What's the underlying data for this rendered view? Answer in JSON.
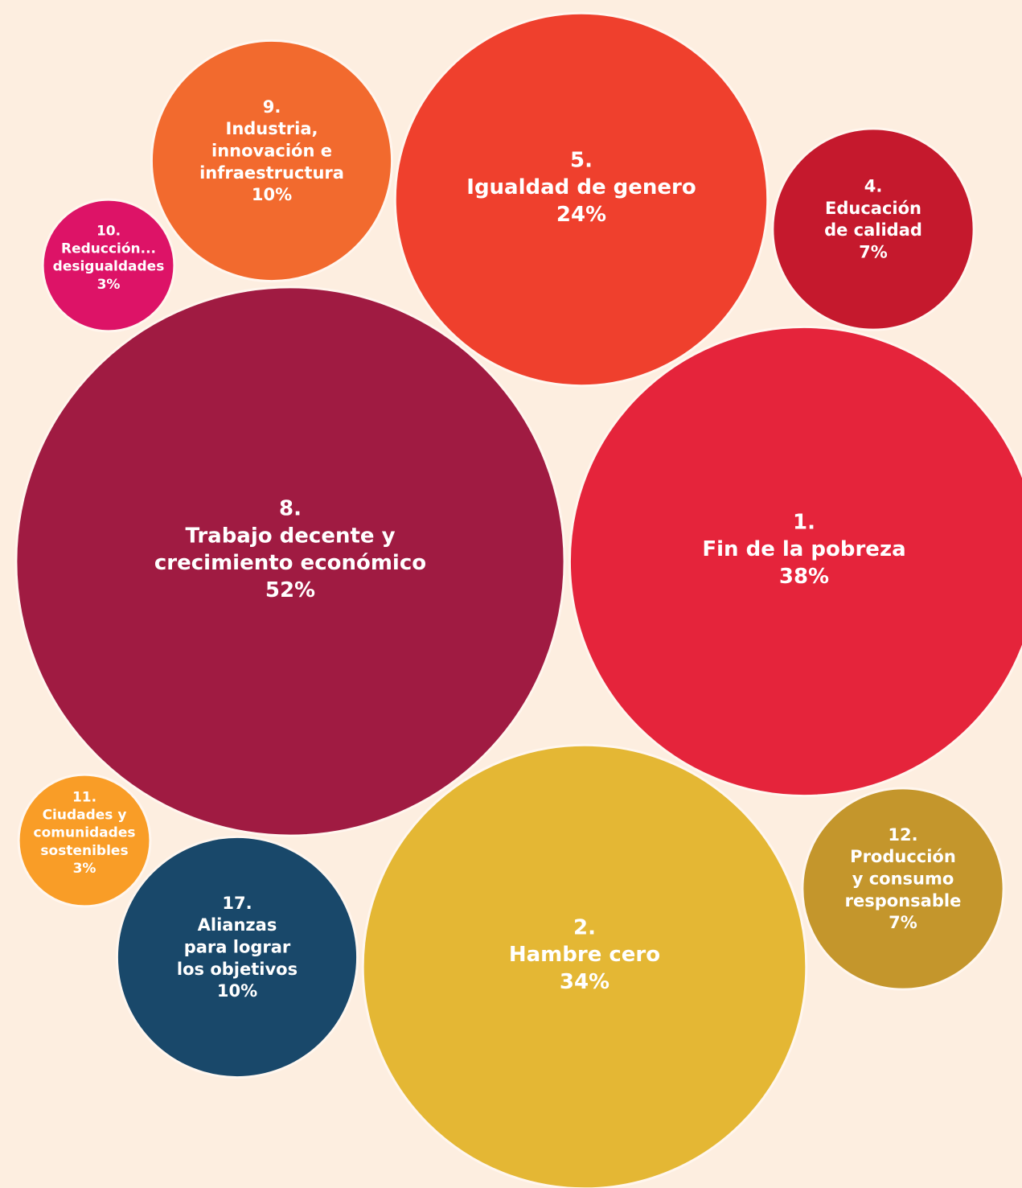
{
  "chart_data": {
    "type": "bubble",
    "categories": [
      "8.",
      "1.",
      "2.",
      "5.",
      "9.",
      "4.",
      "12.",
      "17.",
      "10.",
      "11."
    ],
    "labels": [
      [
        "Trabajo decente y",
        "crecimiento económico"
      ],
      [
        "Fin de la pobreza"
      ],
      [
        "Hambre cero"
      ],
      [
        "Igualdad de genero"
      ],
      [
        "Industria,",
        "innovación e",
        "infraestructura"
      ],
      [
        "Educación",
        "de calidad"
      ],
      [
        "Producción",
        "y consumo",
        "responsable"
      ],
      [
        "Alianzas",
        "para lograr",
        "los objetivos"
      ],
      [
        "Reducción...",
        "desigualdades"
      ],
      [
        "Ciudades y",
        "comunidades",
        "sostenibles"
      ]
    ],
    "values": [
      52,
      38,
      34,
      24,
      10,
      7,
      7,
      10,
      3,
      3
    ],
    "value_labels": [
      "52%",
      "38%",
      "34%",
      "24%",
      "10%",
      "7%",
      "7%",
      "10%",
      "3%",
      "3%"
    ],
    "colors": [
      "#a01b42",
      "#e5243b",
      "#e4b734",
      "#ef402d",
      "#f26a2e",
      "#c5192d",
      "#c4962c",
      "#19486a",
      "#dd1367",
      "#f99d27"
    ]
  }
}
